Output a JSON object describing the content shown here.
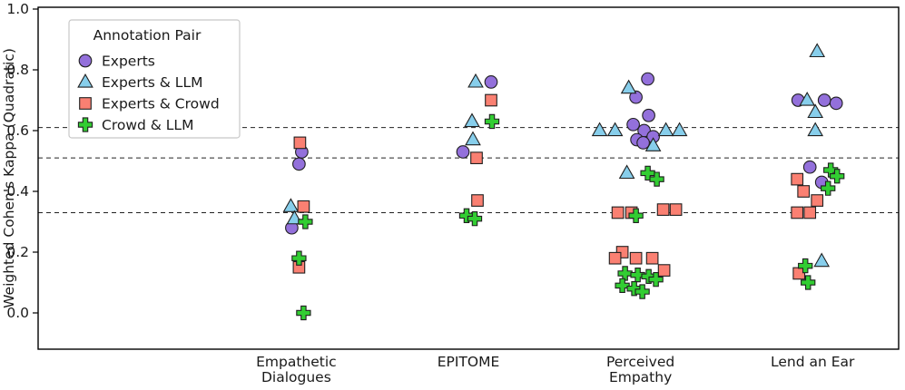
{
  "figure": {
    "ylabel": "Weighted Cohen's Kappa (Quadratic)"
  },
  "chart_data": {
    "type": "scatter",
    "title": "",
    "ylabel": "Weighted Cohen's Kappa (Quadratic)",
    "xlabel": "",
    "ylim": [
      -0.12,
      1.05
    ],
    "ytick_labels": [
      "0.0",
      "0.2",
      "0.4",
      "0.6",
      "0.8",
      "1.0"
    ],
    "ytick_values": [
      0.0,
      0.2,
      0.4,
      0.6,
      0.8,
      1.0
    ],
    "categories": [
      [
        "Empathetic",
        "Dialogues"
      ],
      [
        "EPITOME"
      ],
      [
        "Perceived",
        "Empathy"
      ],
      [
        "Lend an Ear"
      ]
    ],
    "hlines": [
      0.61,
      0.51,
      0.33
    ],
    "grid": false,
    "legend": {
      "title": "Annotation Pair",
      "position": "upper left",
      "entries": [
        "Experts",
        "Experts & LLM",
        "Experts & Crowd",
        "Crowd & LLM"
      ]
    },
    "point_format": "[category_index, kappa, x_jitter_px]",
    "series": [
      {
        "name": "Experts",
        "marker": "circle",
        "color": "#9370DB",
        "points": [
          [
            0,
            0.53,
            6
          ],
          [
            0,
            0.49,
            3
          ],
          [
            0,
            0.28,
            -5
          ],
          [
            1,
            0.76,
            25
          ],
          [
            1,
            0.53,
            -6
          ],
          [
            2,
            0.77,
            8
          ],
          [
            2,
            0.71,
            -5
          ],
          [
            2,
            0.65,
            9
          ],
          [
            2,
            0.62,
            -8
          ],
          [
            2,
            0.6,
            4
          ],
          [
            2,
            0.58,
            14
          ],
          [
            2,
            0.57,
            -4
          ],
          [
            2,
            0.56,
            3
          ],
          [
            3,
            0.7,
            -16
          ],
          [
            3,
            0.7,
            13
          ],
          [
            3,
            0.69,
            26
          ],
          [
            3,
            0.48,
            -3
          ],
          [
            3,
            0.43,
            10
          ]
        ]
      },
      {
        "name": "Experts & LLM",
        "marker": "triangle",
        "color": "#87CEEB",
        "points": [
          [
            0,
            0.35,
            -6
          ],
          [
            0,
            0.31,
            -2
          ],
          [
            1,
            0.76,
            8
          ],
          [
            1,
            0.63,
            4
          ],
          [
            1,
            0.57,
            5
          ],
          [
            2,
            0.74,
            -13
          ],
          [
            2,
            0.6,
            -45
          ],
          [
            2,
            0.6,
            -28
          ],
          [
            2,
            0.6,
            28
          ],
          [
            2,
            0.6,
            43
          ],
          [
            2,
            0.55,
            14
          ],
          [
            2,
            0.46,
            -15
          ],
          [
            3,
            0.86,
            5
          ],
          [
            3,
            0.7,
            -6
          ],
          [
            3,
            0.66,
            3
          ],
          [
            3,
            0.6,
            3
          ],
          [
            3,
            0.17,
            10
          ]
        ]
      },
      {
        "name": "Experts & Crowd",
        "marker": "square",
        "color": "#FA8072",
        "points": [
          [
            0,
            0.56,
            4
          ],
          [
            0,
            0.35,
            8
          ],
          [
            0,
            0.15,
            3
          ],
          [
            1,
            0.7,
            25
          ],
          [
            1,
            0.51,
            9
          ],
          [
            1,
            0.37,
            10
          ],
          [
            2,
            0.34,
            25
          ],
          [
            2,
            0.34,
            39
          ],
          [
            2,
            0.33,
            -25
          ],
          [
            2,
            0.33,
            -10
          ],
          [
            2,
            0.2,
            -20
          ],
          [
            2,
            0.18,
            -28
          ],
          [
            2,
            0.18,
            -5
          ],
          [
            2,
            0.18,
            13
          ],
          [
            2,
            0.14,
            26
          ],
          [
            3,
            0.44,
            -17
          ],
          [
            3,
            0.4,
            -10
          ],
          [
            3,
            0.37,
            5
          ],
          [
            3,
            0.33,
            -17
          ],
          [
            3,
            0.33,
            -3
          ],
          [
            3,
            0.13,
            -15
          ]
        ]
      },
      {
        "name": "Crowd & LLM",
        "marker": "plus",
        "color": "#32CD32",
        "points": [
          [
            0,
            0.3,
            10
          ],
          [
            0,
            0.18,
            3
          ],
          [
            0,
            0.0,
            8
          ],
          [
            1,
            0.63,
            26
          ],
          [
            1,
            0.32,
            -2
          ],
          [
            1,
            0.31,
            7
          ],
          [
            2,
            0.46,
            8
          ],
          [
            2,
            0.44,
            18
          ],
          [
            2,
            0.32,
            -5
          ],
          [
            2,
            0.13,
            -17
          ],
          [
            2,
            0.125,
            -3
          ],
          [
            2,
            0.12,
            9
          ],
          [
            2,
            0.11,
            17
          ],
          [
            2,
            0.09,
            -20
          ],
          [
            2,
            0.08,
            -7
          ],
          [
            2,
            0.07,
            2
          ],
          [
            3,
            0.47,
            20
          ],
          [
            3,
            0.45,
            27
          ],
          [
            3,
            0.41,
            17
          ],
          [
            3,
            0.155,
            -8
          ],
          [
            3,
            0.1,
            -5
          ]
        ]
      }
    ]
  }
}
